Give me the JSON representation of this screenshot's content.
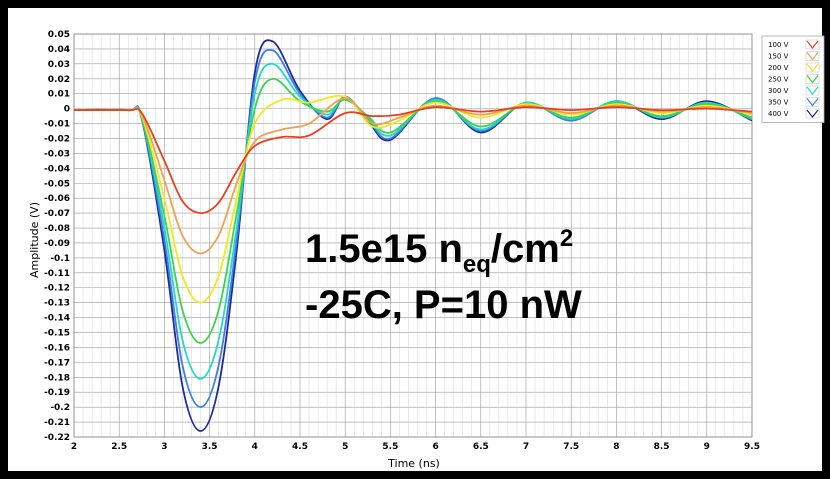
{
  "chart_data": {
    "type": "line",
    "xlabel": "Time (ns)",
    "ylabel": "Amplitude (V)",
    "xlim": [
      2,
      9.5
    ],
    "ylim": [
      -0.22,
      0.05
    ],
    "x_ticks": [
      "2",
      "2.5",
      "3",
      "3.5",
      "4",
      "4.5",
      "5",
      "5.5",
      "6",
      "6.5",
      "7",
      "7.5",
      "8",
      "8.5",
      "9",
      "9.5"
    ],
    "y_ticks": [
      "0.05",
      "0.04",
      "0.03",
      "0.02",
      "0.01",
      "0",
      "-0.01",
      "-0.02",
      "-0.03",
      "-0.04",
      "-0.05",
      "-0.06",
      "-0.07",
      "-0.08",
      "-0.09",
      "-0.1",
      "-0.11",
      "-0.12",
      "-0.13",
      "-0.14",
      "-0.15",
      "-0.16",
      "-0.17",
      "-0.18",
      "-0.19",
      "-0.2",
      "-0.21",
      "-0.22"
    ],
    "grid": true,
    "legend_position": "right",
    "annotation": {
      "line1_main": "1.5e15 n",
      "line1_sub": "eq",
      "line1_rest": "/cm",
      "line1_sup": "2",
      "line2": "-25C, P=10 nW"
    },
    "series": [
      {
        "name": "100 V",
        "color": "#e8401c",
        "x": [
          2,
          2.6,
          2.75,
          3.0,
          3.2,
          3.4,
          3.6,
          3.8,
          4.0,
          4.3,
          4.6,
          5.0,
          5.3,
          5.6,
          6.0,
          6.5,
          7.0,
          7.5,
          8.0,
          8.5,
          9.0,
          9.5
        ],
        "y": [
          -0.001,
          -0.001,
          -0.003,
          -0.035,
          -0.062,
          -0.07,
          -0.063,
          -0.042,
          -0.025,
          -0.019,
          -0.018,
          -0.003,
          -0.005,
          -0.004,
          0.001,
          -0.002,
          0.001,
          -0.001,
          0.001,
          -0.001,
          0.0,
          -0.002
        ]
      },
      {
        "name": "150 V",
        "color": "#f0a050",
        "x": [
          2,
          2.6,
          2.75,
          3.0,
          3.2,
          3.4,
          3.6,
          3.8,
          4.0,
          4.3,
          4.6,
          5.0,
          5.3,
          5.6,
          6.0,
          6.5,
          7.0,
          7.5,
          8.0,
          8.5,
          9.0,
          9.5
        ],
        "y": [
          -0.001,
          -0.001,
          -0.004,
          -0.048,
          -0.085,
          -0.097,
          -0.085,
          -0.05,
          -0.022,
          -0.014,
          -0.01,
          0.007,
          -0.01,
          -0.006,
          0.002,
          -0.004,
          0.002,
          -0.003,
          0.002,
          -0.002,
          0.001,
          -0.003
        ]
      },
      {
        "name": "200 V",
        "color": "#f2e81c",
        "x": [
          2,
          2.6,
          2.75,
          3.0,
          3.2,
          3.4,
          3.6,
          3.8,
          4.0,
          4.3,
          4.6,
          5.0,
          5.3,
          5.6,
          6.0,
          6.5,
          7.0,
          7.5,
          8.0,
          8.5,
          9.0,
          9.5
        ],
        "y": [
          -0.001,
          -0.001,
          -0.005,
          -0.06,
          -0.112,
          -0.13,
          -0.112,
          -0.06,
          -0.01,
          0.006,
          0.004,
          0.008,
          -0.012,
          -0.008,
          0.004,
          -0.006,
          0.003,
          -0.004,
          0.003,
          -0.003,
          0.002,
          -0.004
        ]
      },
      {
        "name": "250 V",
        "color": "#3ad44a",
        "x": [
          2,
          2.6,
          2.75,
          3.0,
          3.2,
          3.4,
          3.6,
          3.8,
          4.0,
          4.2,
          4.5,
          4.8,
          5.0,
          5.25,
          5.5,
          6.0,
          6.5,
          7.0,
          7.5,
          8.0,
          8.5,
          9.0,
          9.5
        ],
        "y": [
          -0.001,
          -0.001,
          -0.006,
          -0.072,
          -0.135,
          -0.157,
          -0.135,
          -0.07,
          0.0,
          0.02,
          0.005,
          -0.002,
          0.006,
          -0.005,
          -0.016,
          0.005,
          -0.012,
          0.003,
          -0.006,
          0.004,
          -0.005,
          0.003,
          -0.006
        ]
      },
      {
        "name": "300 V",
        "color": "#20d8c8",
        "x": [
          2,
          2.6,
          2.75,
          3.0,
          3.2,
          3.4,
          3.6,
          3.8,
          4.0,
          4.2,
          4.5,
          4.8,
          5.0,
          5.25,
          5.5,
          6.0,
          6.5,
          7.0,
          7.5,
          8.0,
          8.5,
          9.0,
          9.5
        ],
        "y": [
          -0.001,
          -0.001,
          -0.006,
          -0.08,
          -0.155,
          -0.181,
          -0.155,
          -0.08,
          0.01,
          0.03,
          0.008,
          -0.004,
          0.007,
          -0.006,
          -0.018,
          0.006,
          -0.014,
          0.004,
          -0.007,
          0.005,
          -0.006,
          0.004,
          -0.007
        ]
      },
      {
        "name": "350 V",
        "color": "#3a7ee8",
        "x": [
          2,
          2.6,
          2.75,
          3.0,
          3.2,
          3.4,
          3.6,
          3.8,
          4.0,
          4.2,
          4.5,
          4.8,
          5.0,
          5.25,
          5.5,
          6.0,
          6.5,
          7.0,
          7.5,
          8.0,
          8.5,
          9.0,
          9.5
        ],
        "y": [
          -0.001,
          -0.001,
          -0.007,
          -0.088,
          -0.172,
          -0.2,
          -0.172,
          -0.088,
          0.018,
          0.039,
          0.01,
          -0.006,
          0.008,
          -0.007,
          -0.02,
          0.007,
          -0.015,
          0.004,
          -0.008,
          0.005,
          -0.006,
          0.004,
          -0.007
        ]
      },
      {
        "name": "400 V",
        "color": "#1c2a9c",
        "x": [
          2,
          2.6,
          2.75,
          3.0,
          3.2,
          3.4,
          3.6,
          3.8,
          4.0,
          4.2,
          4.5,
          4.8,
          5.0,
          5.25,
          5.5,
          6.0,
          6.5,
          7.0,
          7.5,
          8.0,
          8.5,
          9.0,
          9.5
        ],
        "y": [
          -0.001,
          -0.001,
          -0.007,
          -0.095,
          -0.186,
          -0.216,
          -0.186,
          -0.095,
          0.024,
          0.045,
          0.012,
          -0.007,
          0.008,
          -0.008,
          -0.021,
          0.007,
          -0.016,
          0.004,
          -0.008,
          0.005,
          -0.007,
          0.005,
          -0.008
        ]
      }
    ]
  }
}
